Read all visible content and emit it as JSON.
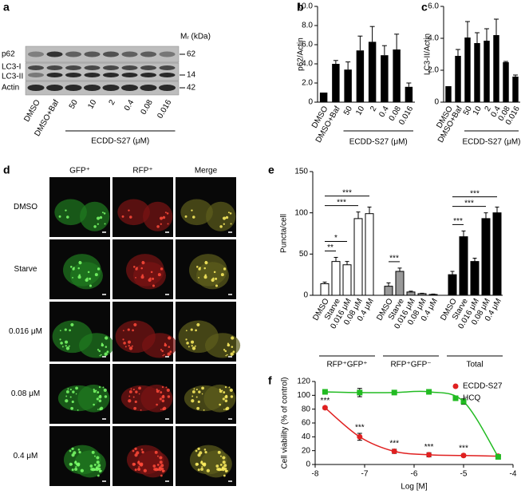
{
  "panel_labels": [
    "a",
    "b",
    "c",
    "d",
    "e",
    "f"
  ],
  "blot": {
    "proteins": [
      "p62",
      "LC3-I",
      "LC3-II",
      "Actin"
    ],
    "mw_title": "Mᵣ (kDa)",
    "mw": [
      "62",
      "14",
      "42"
    ],
    "lanes": [
      "DMSO",
      "DMSO+Baf",
      "50",
      "10",
      "2",
      "0.4",
      "0.08",
      "0.016"
    ],
    "group_label": "ECDD-S27 (μM)"
  },
  "images": {
    "columns": [
      "GFP⁺",
      "RFP⁺",
      "Merge"
    ],
    "rows": [
      "DMSO",
      "Starve",
      "0.016 μM",
      "0.08 μM",
      "0.4 μM"
    ]
  },
  "chart_data": [
    {
      "type": "bar",
      "ylabel": "p62/Actin",
      "categories": [
        "DMSO",
        "DMSO+Baf",
        "50",
        "10",
        "2",
        "0.4",
        "0.08",
        "0.016"
      ],
      "values": [
        1,
        4.0,
        3.4,
        5.4,
        6.3,
        4.9,
        5.5,
        1.6
      ],
      "errors": [
        0,
        0.35,
        0.8,
        1.5,
        1.6,
        1.0,
        1.6,
        0.4
      ],
      "color": "#000000",
      "ylim": [
        0,
        10
      ],
      "yticks": [
        0,
        {
          "value": 2,
          "label": "2.0"
        },
        {
          "value": 4,
          "label": "4.0"
        },
        {
          "value": 6,
          "label": "6.0"
        },
        {
          "value": 8,
          "label": "8.0"
        },
        {
          "value": 10,
          "label": "10.0"
        }
      ],
      "group_label": "ECDD-S27 (μM)"
    },
    {
      "type": "bar",
      "ylabel": "LC3-II/Actin",
      "categories": [
        "DMSO",
        "DMSO+Baf",
        "50",
        "10",
        "2",
        "0.4",
        "0.08",
        "0.016"
      ],
      "values": [
        1,
        2.9,
        4.05,
        3.7,
        3.85,
        4.2,
        2.5,
        1.6
      ],
      "errors": [
        0,
        0.4,
        1.0,
        0.65,
        0.75,
        1.0,
        0.05,
        0.1
      ],
      "color": "#000000",
      "ylim": [
        0,
        6
      ],
      "yticks": [
        0,
        {
          "value": 2,
          "label": "2.0"
        },
        {
          "value": 4,
          "label": "4.0"
        },
        {
          "value": 6,
          "label": "6.0"
        }
      ],
      "group_label": "ECDD-S27 (μM)"
    },
    {
      "type": "grouped_bar",
      "ylabel": "Puncta/cell",
      "categories": [
        "DMSO",
        "Starve",
        "0.016 μM",
        "0.08 μM",
        "0.4 μM"
      ],
      "series": [
        {
          "name": "RFP⁺GFP⁺",
          "color": "#ffffff",
          "values": [
            14,
            41,
            37,
            93,
            99
          ],
          "errors": [
            2,
            5,
            4,
            8,
            8
          ],
          "brackets": [
            {
              "to": 1,
              "label": "**"
            },
            {
              "to": 2,
              "label": "*"
            },
            {
              "to": 3,
              "label": "***"
            },
            {
              "to": 4,
              "label": "***"
            }
          ]
        },
        {
          "name": "RFP⁺GFP⁻",
          "color": "#999999",
          "values": [
            11,
            29,
            4,
            2,
            1
          ],
          "errors": [
            4,
            4,
            1,
            0.5,
            0.5
          ],
          "brackets": [
            {
              "to": 1,
              "label": "***"
            }
          ]
        },
        {
          "name": "Total",
          "color": "#000000",
          "values": [
            25,
            71,
            41,
            93,
            100
          ],
          "errors": [
            4,
            7,
            4,
            7,
            7
          ],
          "brackets": [
            {
              "to": 1,
              "label": "***"
            },
            {
              "to": 3,
              "label": "***"
            },
            {
              "to": 4,
              "label": "***"
            }
          ]
        }
      ],
      "ylim": [
        0,
        150
      ],
      "yticks": [
        0,
        50,
        100,
        150
      ]
    },
    {
      "type": "scatter",
      "xlabel": "Log [M]",
      "ylabel": "Cell viability (% of control)",
      "x": [
        -7.8,
        -7.1,
        -6.4,
        -5.7,
        -5.0,
        -4.3
      ],
      "series": [
        {
          "name": "ECDD-S27",
          "color": "#e02020",
          "marker": "circle",
          "values": [
            82,
            40,
            19,
            14,
            13,
            12
          ],
          "errors": [
            2,
            5,
            3,
            3,
            2,
            2
          ],
          "point_labels": [
            "***",
            "***",
            "***",
            "***",
            "***",
            null
          ]
        },
        {
          "name": "HCQ",
          "color": "#22bb22",
          "marker": "square",
          "values": [
            105,
            104,
            104,
            105,
            91,
            11
          ],
          "errors": [
            1,
            6,
            3,
            3,
            4,
            2
          ]
        }
      ],
      "xlim": [
        -8,
        -4
      ],
      "xticks": [
        -8,
        -7,
        -6,
        -5,
        -4
      ],
      "ylim": [
        0,
        120
      ],
      "yticks": [
        0,
        20,
        40,
        60,
        80,
        100,
        120
      ],
      "legend": "upper right"
    }
  ]
}
